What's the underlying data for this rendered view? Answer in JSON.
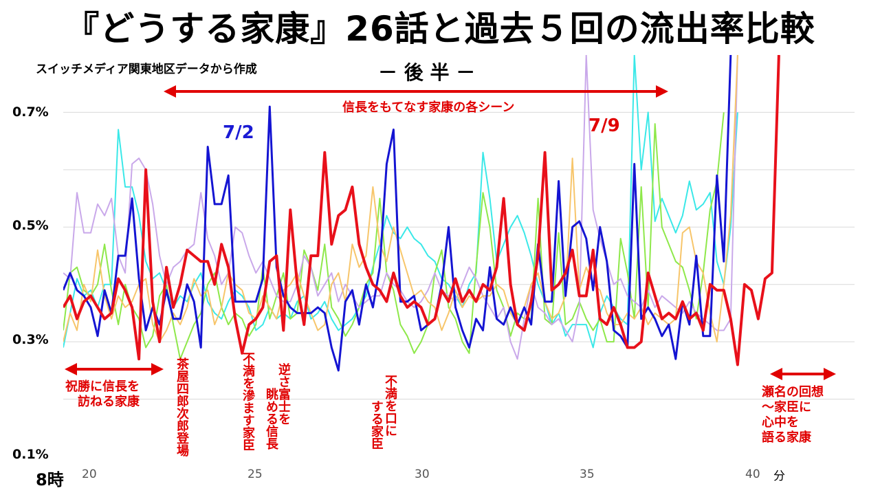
{
  "title": "『どうする家康』26話と過去５回の流出率比較",
  "subtitle": "スイッチメディア関東地区データから作成",
  "half_label": "－ 後 半 －",
  "axis": {
    "y_ticks": [
      "0.7%",
      "0.5%",
      "0.3%",
      "0.1%"
    ],
    "x_ticks": [
      "20",
      "25",
      "30",
      "35",
      "40"
    ],
    "hour_label": "8時",
    "unit_label": "分"
  },
  "annotations": {
    "scenes_banner": "信長をもてなす家康の各シーン",
    "date_blue": "7/2",
    "date_red": "7/9",
    "left_banner": "祝勝に信長を\n訪ねる家康",
    "shirou": "茶屋四郎次郎登場",
    "fuman": "不満を滲ます家臣",
    "sakasa": "逆さ富士を",
    "nagameru": "眺める信長",
    "fuman_kuchi": "不満を口に",
    "suru_kashin": "する家臣",
    "right_banner": "瀬名の回想\n～家臣に\n心中を\n語る家康"
  },
  "colors": {
    "red": "#e8101a",
    "blue": "#1414d2",
    "cyan": "#3ae8e8",
    "green": "#8ee84a",
    "lavender": "#c9a8ea",
    "orange": "#f7c56a",
    "grid": "#d9d9d9"
  },
  "chart_data": {
    "type": "line",
    "xlim": [
      19.4,
      42.4
    ],
    "ylim": [
      0.1,
      0.8
    ],
    "y_ticks": [
      0.1,
      0.3,
      0.5,
      0.7
    ],
    "x_ticks": [
      20,
      25,
      30,
      35,
      40
    ],
    "xlabel": "分",
    "ylabel": "",
    "grid": true,
    "x_step": 0.2,
    "series": [
      {
        "name": "7/9",
        "color": "#e8101a",
        "width": 4,
        "values": [
          0.36,
          0.38,
          0.34,
          0.37,
          0.38,
          0.36,
          0.34,
          0.35,
          0.41,
          0.39,
          0.36,
          0.27,
          0.6,
          0.37,
          0.3,
          0.43,
          0.36,
          0.4,
          0.46,
          0.45,
          0.44,
          0.44,
          0.4,
          0.47,
          0.43,
          0.34,
          0.28,
          0.33,
          0.34,
          0.36,
          0.44,
          0.45,
          0.32,
          0.53,
          0.4,
          0.33,
          0.45,
          0.45,
          0.63,
          0.47,
          0.52,
          0.53,
          0.57,
          0.47,
          0.43,
          0.4,
          0.39,
          0.37,
          0.42,
          0.38,
          0.36,
          0.37,
          0.36,
          0.33,
          0.34,
          0.39,
          0.37,
          0.41,
          0.37,
          0.39,
          0.37,
          0.4,
          0.39,
          0.43,
          0.55,
          0.4,
          0.33,
          0.32,
          0.37,
          0.45,
          0.63,
          0.39,
          0.4,
          0.42,
          0.46,
          0.38,
          0.38,
          0.46,
          0.34,
          0.33,
          0.36,
          0.33,
          0.29,
          0.29,
          0.3,
          0.42,
          0.38,
          0.34,
          0.35,
          0.34,
          0.37,
          0.34,
          0.35,
          0.32,
          0.4,
          0.39,
          0.39,
          0.34,
          0.26,
          0.4,
          0.39,
          0.34,
          0.41,
          0.42,
          0.8
        ]
      },
      {
        "name": "7/2",
        "color": "#1414d2",
        "width": 3,
        "values": [
          0.39,
          0.42,
          0.39,
          0.38,
          0.36,
          0.31,
          0.39,
          0.35,
          0.45,
          0.45,
          0.55,
          0.41,
          0.32,
          0.36,
          0.33,
          0.39,
          0.34,
          0.34,
          0.4,
          0.37,
          0.29,
          0.64,
          0.54,
          0.54,
          0.59,
          0.37,
          0.37,
          0.37,
          0.37,
          0.41,
          0.71,
          0.43,
          0.38,
          0.36,
          0.35,
          0.35,
          0.35,
          0.36,
          0.35,
          0.29,
          0.25,
          0.37,
          0.39,
          0.33,
          0.4,
          0.36,
          0.43,
          0.61,
          0.67,
          0.37,
          0.37,
          0.38,
          0.32,
          0.33,
          0.34,
          0.4,
          0.5,
          0.36,
          0.32,
          0.29,
          0.34,
          0.32,
          0.43,
          0.34,
          0.33,
          0.36,
          0.33,
          0.36,
          0.33,
          0.47,
          0.37,
          0.37,
          0.58,
          0.38,
          0.5,
          0.51,
          0.48,
          0.39,
          0.5,
          0.44,
          0.32,
          0.31,
          0.29,
          0.61,
          0.34,
          0.36,
          0.34,
          0.31,
          0.33,
          0.27,
          0.37,
          0.33,
          0.45,
          0.31,
          0.31,
          0.59,
          0.44,
          0.8
        ]
      },
      {
        "name": "",
        "color": "#3ae8e8",
        "width": 2,
        "values": [
          0.29,
          0.35,
          0.41,
          0.38,
          0.39,
          0.36,
          0.4,
          0.4,
          0.67,
          0.57,
          0.57,
          0.52,
          0.44,
          0.41,
          0.42,
          0.39,
          0.36,
          0.38,
          0.37,
          0.4,
          0.42,
          0.37,
          0.35,
          0.34,
          0.37,
          0.39,
          0.38,
          0.36,
          0.32,
          0.33,
          0.36,
          0.34,
          0.35,
          0.34,
          0.37,
          0.38,
          0.34,
          0.35,
          0.37,
          0.34,
          0.32,
          0.33,
          0.34,
          0.36,
          0.38,
          0.43,
          0.47,
          0.52,
          0.49,
          0.48,
          0.5,
          0.48,
          0.47,
          0.45,
          0.44,
          0.41,
          0.4,
          0.38,
          0.36,
          0.4,
          0.42,
          0.63,
          0.55,
          0.44,
          0.47,
          0.5,
          0.52,
          0.49,
          0.45,
          0.4,
          0.37,
          0.33,
          0.35,
          0.31,
          0.33,
          0.33,
          0.33,
          0.29,
          0.35,
          0.38,
          0.36,
          0.34,
          0.33,
          0.8,
          0.6,
          0.7,
          0.51,
          0.55,
          0.52,
          0.49,
          0.52,
          0.58,
          0.53,
          0.54,
          0.56,
          0.44,
          0.4,
          0.5,
          0.7
        ]
      },
      {
        "name": "",
        "color": "#8ee84a",
        "width": 2,
        "values": [
          0.32,
          0.42,
          0.43,
          0.39,
          0.38,
          0.4,
          0.47,
          0.39,
          0.33,
          0.4,
          0.36,
          0.34,
          0.29,
          0.31,
          0.38,
          0.4,
          0.33,
          0.27,
          0.3,
          0.33,
          0.35,
          0.4,
          0.42,
          0.36,
          0.33,
          0.35,
          0.34,
          0.31,
          0.33,
          0.43,
          0.34,
          0.38,
          0.42,
          0.34,
          0.35,
          0.46,
          0.43,
          0.39,
          0.47,
          0.36,
          0.34,
          0.31,
          0.33,
          0.36,
          0.4,
          0.42,
          0.55,
          0.42,
          0.39,
          0.33,
          0.31,
          0.28,
          0.3,
          0.33,
          0.42,
          0.46,
          0.36,
          0.34,
          0.3,
          0.28,
          0.43,
          0.56,
          0.5,
          0.39,
          0.36,
          0.31,
          0.35,
          0.34,
          0.34,
          0.55,
          0.34,
          0.33,
          0.49,
          0.33,
          0.34,
          0.37,
          0.34,
          0.32,
          0.34,
          0.3,
          0.3,
          0.48,
          0.42,
          0.34,
          0.57,
          0.36,
          0.68,
          0.5,
          0.47,
          0.44,
          0.43,
          0.39,
          0.34,
          0.42,
          0.53,
          0.58,
          0.7
        ]
      },
      {
        "name": "",
        "color": "#c9a8ea",
        "width": 2,
        "values": [
          0.42,
          0.41,
          0.56,
          0.49,
          0.49,
          0.54,
          0.52,
          0.55,
          0.45,
          0.42,
          0.61,
          0.62,
          0.6,
          0.54,
          0.45,
          0.4,
          0.43,
          0.44,
          0.46,
          0.47,
          0.56,
          0.48,
          0.45,
          0.4,
          0.42,
          0.5,
          0.49,
          0.45,
          0.42,
          0.44,
          0.41,
          0.38,
          0.37,
          0.37,
          0.4,
          0.45,
          0.43,
          0.38,
          0.4,
          0.42,
          0.37,
          0.4,
          0.38,
          0.36,
          0.37,
          0.38,
          0.38,
          0.42,
          0.4,
          0.39,
          0.37,
          0.36,
          0.37,
          0.39,
          0.42,
          0.39,
          0.38,
          0.37,
          0.4,
          0.43,
          0.41,
          0.38,
          0.36,
          0.34,
          0.36,
          0.3,
          0.27,
          0.34,
          0.4,
          0.36,
          0.35,
          0.33,
          0.34,
          0.32,
          0.3,
          0.36,
          0.8,
          0.53,
          0.48,
          0.44,
          0.4,
          0.41,
          0.38,
          0.37,
          0.36,
          0.39,
          0.36,
          0.38,
          0.37,
          0.36,
          0.35,
          0.37,
          0.35,
          0.34,
          0.33,
          0.32,
          0.32,
          0.34,
          0.8
        ]
      },
      {
        "name": "",
        "color": "#f7c56a",
        "width": 2,
        "values": [
          0.3,
          0.35,
          0.32,
          0.4,
          0.37,
          0.46,
          0.38,
          0.34,
          0.38,
          0.36,
          0.37,
          0.4,
          0.41,
          0.33,
          0.3,
          0.32,
          0.35,
          0.33,
          0.36,
          0.41,
          0.38,
          0.39,
          0.33,
          0.36,
          0.42,
          0.4,
          0.39,
          0.35,
          0.34,
          0.38,
          0.36,
          0.34,
          0.39,
          0.4,
          0.42,
          0.38,
          0.35,
          0.32,
          0.33,
          0.4,
          0.42,
          0.37,
          0.47,
          0.43,
          0.45,
          0.57,
          0.47,
          0.44,
          0.5,
          0.46,
          0.42,
          0.38,
          0.39,
          0.37,
          0.36,
          0.32,
          0.35,
          0.39,
          0.36,
          0.38,
          0.37,
          0.38,
          0.38,
          0.4,
          0.39,
          0.35,
          0.33,
          0.36,
          0.4,
          0.42,
          0.37,
          0.34,
          0.35,
          0.38,
          0.62,
          0.39,
          0.43,
          0.4,
          0.39,
          0.35,
          0.33,
          0.33,
          0.35,
          0.34,
          0.36,
          0.33,
          0.35,
          0.34,
          0.33,
          0.34,
          0.49,
          0.5,
          0.44,
          0.42,
          0.35,
          0.3,
          0.4,
          0.52,
          0.8
        ]
      }
    ]
  }
}
